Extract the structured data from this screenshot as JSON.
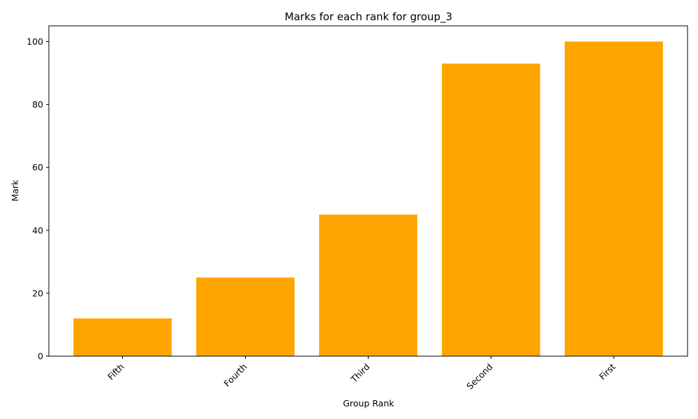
{
  "chart_data": {
    "type": "bar",
    "title": "Marks for each rank for group_3",
    "xlabel": "Group Rank",
    "ylabel": "Mark",
    "categories": [
      "Fifth",
      "Fourth",
      "Third",
      "Second",
      "First"
    ],
    "values": [
      12,
      25,
      45,
      93,
      100
    ],
    "ylim": [
      0,
      105
    ],
    "yticks": [
      0,
      20,
      40,
      60,
      80,
      100
    ],
    "bar_color": "#ffa500",
    "grid": false,
    "legend": "none"
  }
}
